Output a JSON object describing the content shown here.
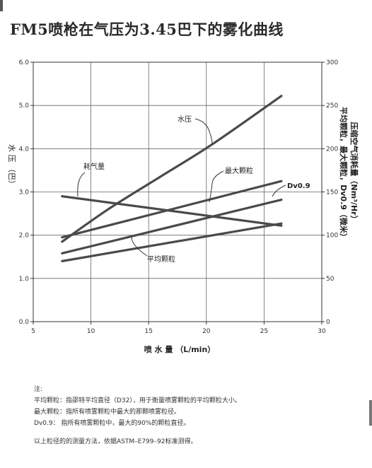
{
  "title": "FM5喷枪在气压为3.45巴下的雾化曲线",
  "chart_data": {
    "type": "line",
    "title": "FM5喷枪在气压为3.45巴下的雾化曲线",
    "xlabel": "喷 水 量 （L/min）",
    "ylabel_left": "水 压 （巴）",
    "ylabel_right_1": "压缩空气消耗量（Nm³/Hr）",
    "ylabel_right_2": "平均颗粒，最大颗粒，Dv0.9（微米）",
    "xlim": [
      5,
      30
    ],
    "ylim_left": [
      0,
      6
    ],
    "ylim_right": [
      0,
      300
    ],
    "x_ticks": [
      "5",
      "10",
      "15",
      "20",
      "25",
      "30"
    ],
    "y_left_ticks": [
      "0.0",
      "1.0",
      "2.0",
      "3.0",
      "4.0",
      "5.0",
      "6.0"
    ],
    "y_right_ticks": [
      "0",
      "50",
      "100",
      "150",
      "200",
      "250",
      "300"
    ],
    "grid": true,
    "series": [
      {
        "name": "水压",
        "axis": "left",
        "x": [
          7.5,
          11.5,
          16,
          20.5,
          26.5
        ],
        "y": [
          1.85,
          2.6,
          3.35,
          4.1,
          5.22
        ]
      },
      {
        "name": "耗气量",
        "axis": "left",
        "x": [
          7.5,
          26.5
        ],
        "y": [
          2.9,
          2.22
        ]
      },
      {
        "name": "最大颗粒",
        "axis": "left",
        "x": [
          7.5,
          26.5
        ],
        "y": [
          1.95,
          3.25
        ]
      },
      {
        "name": "Dv0.9",
        "axis": "left",
        "x": [
          7.5,
          26.5
        ],
        "y": [
          1.58,
          2.82
        ]
      },
      {
        "name": "平均颗粒",
        "axis": "left",
        "x": [
          7.5,
          26.5
        ],
        "y": [
          1.4,
          2.27
        ]
      }
    ],
    "annotations": [
      {
        "text": "水压",
        "series": 0
      },
      {
        "text": "耗气量",
        "series": 1
      },
      {
        "text": "最大颗粒",
        "series": 2
      },
      {
        "text": "Dv0.9",
        "series": 3
      },
      {
        "text": "平均颗粒",
        "series": 4
      }
    ],
    "line_color": "#4a4a4a"
  },
  "notes": {
    "heading": "注:",
    "lines": [
      "平均颗粒：指邵特平均直径（D32），用于衡量喷雾颗粒的平均颗粒大小。",
      "最大颗粒：指所有喷雾颗粒中最大的那颗喷雾粒径。",
      "Dv0.9：      指所有喷雾颗粒中，最大的90%的颗粒直径。"
    ],
    "footer": "以上粒径的的测量方法，依据ASTM–E799–92标准测得。"
  }
}
